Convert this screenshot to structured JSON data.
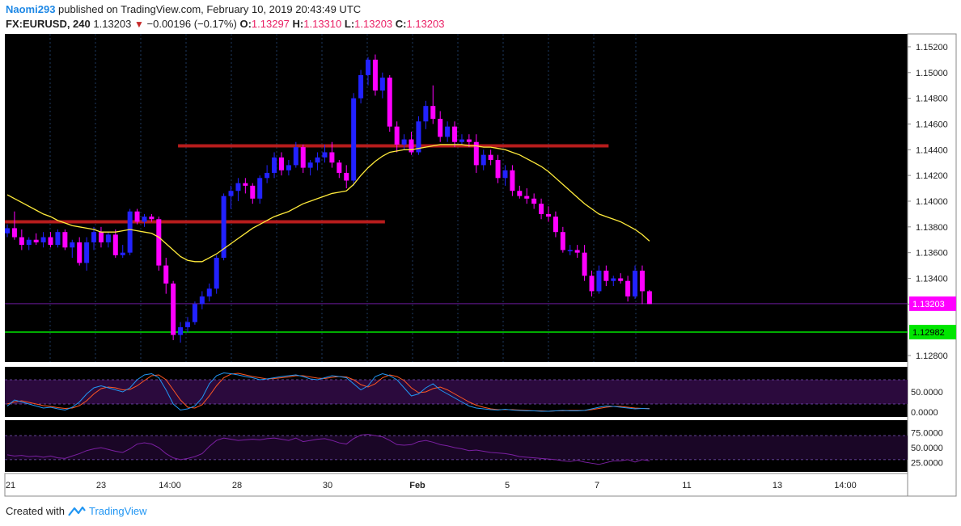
{
  "header": {
    "author": "Naomi293",
    "published_text": "published on TradingView.com, February 10, 2019 20:43:49 UTC",
    "symbol": "FX:EURUSD, 240",
    "last": "1.13203",
    "change": "−0.00196 (−0.17%)",
    "o_label": "O:",
    "o_value": "1.13297",
    "h_label": "H:",
    "h_value": "1.13310",
    "l_label": "L:",
    "l_value": "1.13203",
    "c_label": "C:",
    "c_value": "1.13203"
  },
  "footer": {
    "created_with": "Created with",
    "brand": "TradingView"
  },
  "colors": {
    "bg": "#000000",
    "up_candle": "#2222ff",
    "down_candle": "#ff00ff",
    "ma_line": "#ffeb3b",
    "resistance_line": "#b71c1c",
    "support_line": "#00e600",
    "last_price_label": "#ff00ff",
    "support_label": "#00e600",
    "stoch_k": "#2196f3",
    "stoch_d": "#ff5722",
    "rsi_line": "#7b1fa2",
    "osc_band": "#2b0a3d"
  },
  "chart_data": {
    "type": "candlestick",
    "symbol": "FX:EURUSD",
    "interval": "240",
    "x_ticks": [
      "21",
      "23",
      "14:00",
      "28",
      "30",
      "Feb",
      "5",
      "7",
      "11",
      "13",
      "14:00"
    ],
    "y_ticks": [
      "1.15200",
      "1.15000",
      "1.14800",
      "1.14600",
      "1.14400",
      "1.14200",
      "1.14000",
      "1.13800",
      "1.13600",
      "1.13400",
      "1.13200",
      "1.12800"
    ],
    "ylim": [
      1.1275,
      1.153
    ],
    "last_price_label": "1.13203",
    "support_label": "1.12982",
    "support_level": 1.12982,
    "resistance_levels": [
      {
        "price": 1.1384,
        "from_index": 0,
        "to_index": 52
      },
      {
        "price": 1.1443,
        "from_index": 24,
        "to_index": 83
      }
    ],
    "candles": [
      {
        "o": 1.1375,
        "h": 1.1382,
        "l": 1.1372,
        "c": 1.1379
      },
      {
        "o": 1.1379,
        "h": 1.1392,
        "l": 1.137,
        "c": 1.1372
      },
      {
        "o": 1.1372,
        "h": 1.1378,
        "l": 1.1362,
        "c": 1.1366
      },
      {
        "o": 1.1366,
        "h": 1.1372,
        "l": 1.1362,
        "c": 1.137
      },
      {
        "o": 1.137,
        "h": 1.1375,
        "l": 1.1366,
        "c": 1.1368
      },
      {
        "o": 1.1368,
        "h": 1.1376,
        "l": 1.1364,
        "c": 1.1372
      },
      {
        "o": 1.1372,
        "h": 1.1376,
        "l": 1.1364,
        "c": 1.1366
      },
      {
        "o": 1.1366,
        "h": 1.1378,
        "l": 1.1364,
        "c": 1.1376
      },
      {
        "o": 1.1376,
        "h": 1.1378,
        "l": 1.1362,
        "c": 1.1364
      },
      {
        "o": 1.1364,
        "h": 1.137,
        "l": 1.1356,
        "c": 1.1368
      },
      {
        "o": 1.1368,
        "h": 1.1372,
        "l": 1.135,
        "c": 1.1352
      },
      {
        "o": 1.1352,
        "h": 1.1372,
        "l": 1.1346,
        "c": 1.1368
      },
      {
        "o": 1.1368,
        "h": 1.138,
        "l": 1.1362,
        "c": 1.1376
      },
      {
        "o": 1.1376,
        "h": 1.138,
        "l": 1.1364,
        "c": 1.1368
      },
      {
        "o": 1.1368,
        "h": 1.1376,
        "l": 1.1364,
        "c": 1.1374
      },
      {
        "o": 1.1374,
        "h": 1.1378,
        "l": 1.1356,
        "c": 1.1358
      },
      {
        "o": 1.1358,
        "h": 1.1366,
        "l": 1.1356,
        "c": 1.136
      },
      {
        "o": 1.136,
        "h": 1.1394,
        "l": 1.1358,
        "c": 1.1392
      },
      {
        "o": 1.1392,
        "h": 1.1394,
        "l": 1.1382,
        "c": 1.1384
      },
      {
        "o": 1.1384,
        "h": 1.139,
        "l": 1.138,
        "c": 1.1388
      },
      {
        "o": 1.1388,
        "h": 1.139,
        "l": 1.1384,
        "c": 1.1386
      },
      {
        "o": 1.1386,
        "h": 1.1388,
        "l": 1.1346,
        "c": 1.135
      },
      {
        "o": 1.135,
        "h": 1.1356,
        "l": 1.1328,
        "c": 1.1336
      },
      {
        "o": 1.1336,
        "h": 1.1338,
        "l": 1.1292,
        "c": 1.1296
      },
      {
        "o": 1.1296,
        "h": 1.1306,
        "l": 1.129,
        "c": 1.1302
      },
      {
        "o": 1.1302,
        "h": 1.131,
        "l": 1.1298,
        "c": 1.1306
      },
      {
        "o": 1.1306,
        "h": 1.1322,
        "l": 1.1304,
        "c": 1.132
      },
      {
        "o": 1.132,
        "h": 1.133,
        "l": 1.1316,
        "c": 1.1326
      },
      {
        "o": 1.1326,
        "h": 1.1336,
        "l": 1.1322,
        "c": 1.1332
      },
      {
        "o": 1.1332,
        "h": 1.1358,
        "l": 1.1328,
        "c": 1.1356
      },
      {
        "o": 1.1356,
        "h": 1.1406,
        "l": 1.1354,
        "c": 1.1404
      },
      {
        "o": 1.1404,
        "h": 1.1412,
        "l": 1.1394,
        "c": 1.1408
      },
      {
        "o": 1.1408,
        "h": 1.1418,
        "l": 1.14,
        "c": 1.1414
      },
      {
        "o": 1.1414,
        "h": 1.1418,
        "l": 1.1406,
        "c": 1.1412
      },
      {
        "o": 1.1412,
        "h": 1.1414,
        "l": 1.1398,
        "c": 1.1402
      },
      {
        "o": 1.1402,
        "h": 1.142,
        "l": 1.1398,
        "c": 1.1418
      },
      {
        "o": 1.1418,
        "h": 1.1428,
        "l": 1.1414,
        "c": 1.1422
      },
      {
        "o": 1.1422,
        "h": 1.1438,
        "l": 1.1418,
        "c": 1.1434
      },
      {
        "o": 1.1434,
        "h": 1.1438,
        "l": 1.142,
        "c": 1.1424
      },
      {
        "o": 1.1424,
        "h": 1.1432,
        "l": 1.142,
        "c": 1.1428
      },
      {
        "o": 1.1428,
        "h": 1.1446,
        "l": 1.1426,
        "c": 1.1442
      },
      {
        "o": 1.1442,
        "h": 1.1444,
        "l": 1.1422,
        "c": 1.1426
      },
      {
        "o": 1.1426,
        "h": 1.1432,
        "l": 1.142,
        "c": 1.143
      },
      {
        "o": 1.143,
        "h": 1.1438,
        "l": 1.1424,
        "c": 1.1434
      },
      {
        "o": 1.1434,
        "h": 1.1444,
        "l": 1.143,
        "c": 1.1438
      },
      {
        "o": 1.1438,
        "h": 1.1446,
        "l": 1.1426,
        "c": 1.143
      },
      {
        "o": 1.143,
        "h": 1.1432,
        "l": 1.1418,
        "c": 1.1422
      },
      {
        "o": 1.1422,
        "h": 1.1428,
        "l": 1.141,
        "c": 1.1416
      },
      {
        "o": 1.1416,
        "h": 1.1484,
        "l": 1.1412,
        "c": 1.148
      },
      {
        "o": 1.148,
        "h": 1.1502,
        "l": 1.1476,
        "c": 1.1498
      },
      {
        "o": 1.1498,
        "h": 1.1512,
        "l": 1.149,
        "c": 1.151
      },
      {
        "o": 1.151,
        "h": 1.1514,
        "l": 1.1482,
        "c": 1.1486
      },
      {
        "o": 1.1486,
        "h": 1.15,
        "l": 1.148,
        "c": 1.1496
      },
      {
        "o": 1.1496,
        "h": 1.1498,
        "l": 1.1454,
        "c": 1.1458
      },
      {
        "o": 1.1458,
        "h": 1.1462,
        "l": 1.1438,
        "c": 1.1444
      },
      {
        "o": 1.1444,
        "h": 1.1452,
        "l": 1.144,
        "c": 1.1448
      },
      {
        "o": 1.1448,
        "h": 1.1454,
        "l": 1.1436,
        "c": 1.1438
      },
      {
        "o": 1.1438,
        "h": 1.1466,
        "l": 1.1436,
        "c": 1.1462
      },
      {
        "o": 1.1462,
        "h": 1.1478,
        "l": 1.1456,
        "c": 1.1474
      },
      {
        "o": 1.1474,
        "h": 1.149,
        "l": 1.146,
        "c": 1.1464
      },
      {
        "o": 1.1464,
        "h": 1.147,
        "l": 1.1446,
        "c": 1.145
      },
      {
        "o": 1.145,
        "h": 1.1462,
        "l": 1.1446,
        "c": 1.1458
      },
      {
        "o": 1.1458,
        "h": 1.1462,
        "l": 1.1442,
        "c": 1.1446
      },
      {
        "o": 1.1446,
        "h": 1.1452,
        "l": 1.1444,
        "c": 1.1448
      },
      {
        "o": 1.1448,
        "h": 1.1452,
        "l": 1.1442,
        "c": 1.1446
      },
      {
        "o": 1.1446,
        "h": 1.1452,
        "l": 1.1422,
        "c": 1.1428
      },
      {
        "o": 1.1428,
        "h": 1.144,
        "l": 1.1424,
        "c": 1.1436
      },
      {
        "o": 1.1436,
        "h": 1.144,
        "l": 1.1428,
        "c": 1.1432
      },
      {
        "o": 1.1432,
        "h": 1.1436,
        "l": 1.1414,
        "c": 1.1418
      },
      {
        "o": 1.1418,
        "h": 1.1428,
        "l": 1.1412,
        "c": 1.1424
      },
      {
        "o": 1.1424,
        "h": 1.1428,
        "l": 1.1404,
        "c": 1.1408
      },
      {
        "o": 1.1408,
        "h": 1.1412,
        "l": 1.1402,
        "c": 1.1404
      },
      {
        "o": 1.1404,
        "h": 1.141,
        "l": 1.1398,
        "c": 1.1402
      },
      {
        "o": 1.1402,
        "h": 1.1406,
        "l": 1.1394,
        "c": 1.1398
      },
      {
        "o": 1.1398,
        "h": 1.1402,
        "l": 1.1386,
        "c": 1.139
      },
      {
        "o": 1.139,
        "h": 1.1396,
        "l": 1.1384,
        "c": 1.1388
      },
      {
        "o": 1.1388,
        "h": 1.1392,
        "l": 1.1372,
        "c": 1.1376
      },
      {
        "o": 1.1376,
        "h": 1.138,
        "l": 1.136,
        "c": 1.1362
      },
      {
        "o": 1.1362,
        "h": 1.1366,
        "l": 1.1358,
        "c": 1.1362
      },
      {
        "o": 1.1362,
        "h": 1.1366,
        "l": 1.1356,
        "c": 1.136
      },
      {
        "o": 1.136,
        "h": 1.1366,
        "l": 1.1338,
        "c": 1.1342
      },
      {
        "o": 1.1342,
        "h": 1.1346,
        "l": 1.1326,
        "c": 1.133
      },
      {
        "o": 1.133,
        "h": 1.135,
        "l": 1.1328,
        "c": 1.1346
      },
      {
        "o": 1.1346,
        "h": 1.135,
        "l": 1.1334,
        "c": 1.1338
      },
      {
        "o": 1.1338,
        "h": 1.1342,
        "l": 1.1334,
        "c": 1.134
      },
      {
        "o": 1.134,
        "h": 1.1344,
        "l": 1.1336,
        "c": 1.1338
      },
      {
        "o": 1.1338,
        "h": 1.1342,
        "l": 1.1322,
        "c": 1.1326
      },
      {
        "o": 1.1326,
        "h": 1.135,
        "l": 1.1324,
        "c": 1.1346
      },
      {
        "o": 1.1346,
        "h": 1.135,
        "l": 1.132,
        "c": 1.133
      },
      {
        "o": 1.133,
        "h": 1.1331,
        "l": 1.132,
        "c": 1.132
      }
    ],
    "ma": [
      1.1405,
      1.1402,
      1.1399,
      1.1396,
      1.1393,
      1.139,
      1.1388,
      1.1385,
      1.1383,
      1.1381,
      1.138,
      1.1379,
      1.1378,
      1.1376,
      1.1376,
      1.1376,
      1.1377,
      1.1378,
      1.1377,
      1.1376,
      1.1375,
      1.1372,
      1.1367,
      1.1362,
      1.1357,
      1.1354,
      1.1353,
      1.1353,
      1.1356,
      1.1359,
      1.1363,
      1.1367,
      1.1371,
      1.1375,
      1.1379,
      1.1382,
      1.1385,
      1.1388,
      1.139,
      1.1392,
      1.1395,
      1.1398,
      1.14,
      1.1402,
      1.1404,
      1.1406,
      1.1407,
      1.1408,
      1.1413,
      1.142,
      1.1426,
      1.1431,
      1.1435,
      1.1438,
      1.1439,
      1.144,
      1.144,
      1.1441,
      1.1442,
      1.1443,
      1.1444,
      1.1444,
      1.1444,
      1.1444,
      1.1443,
      1.1443,
      1.1442,
      1.1442,
      1.1441,
      1.144,
      1.1438,
      1.1436,
      1.1433,
      1.143,
      1.1427,
      1.1423,
      1.1418,
      1.1413,
      1.1408,
      1.1403,
      1.1398,
      1.1394,
      1.139,
      1.1388,
      1.1386,
      1.1384,
      1.1381,
      1.1378,
      1.1374,
      1.1369
    ],
    "stoch": {
      "ticks": [
        "50.0000",
        "0.0000"
      ],
      "k": [
        15,
        30,
        25,
        20,
        15,
        10,
        12,
        8,
        5,
        12,
        25,
        45,
        60,
        65,
        60,
        55,
        50,
        60,
        80,
        92,
        95,
        85,
        55,
        20,
        5,
        8,
        15,
        35,
        70,
        90,
        97,
        95,
        92,
        88,
        85,
        80,
        82,
        85,
        88,
        90,
        92,
        88,
        82,
        80,
        85,
        90,
        88,
        85,
        70,
        55,
        65,
        88,
        95,
        90,
        80,
        60,
        40,
        45,
        60,
        70,
        55,
        45,
        35,
        25,
        15,
        10,
        8,
        6,
        5,
        7,
        5,
        4,
        3,
        3,
        2,
        2,
        3,
        4,
        3,
        3,
        4,
        8,
        12,
        15,
        14,
        12,
        10,
        8,
        9,
        8
      ],
      "d": [
        20,
        25,
        28,
        24,
        20,
        16,
        14,
        11,
        9,
        10,
        16,
        28,
        45,
        58,
        62,
        60,
        55,
        56,
        65,
        78,
        90,
        92,
        80,
        55,
        30,
        12,
        10,
        18,
        40,
        65,
        85,
        94,
        96,
        92,
        88,
        85,
        82,
        83,
        85,
        87,
        90,
        90,
        87,
        84,
        83,
        86,
        88,
        87,
        80,
        68,
        62,
        70,
        85,
        92,
        88,
        78,
        60,
        48,
        50,
        58,
        62,
        55,
        45,
        35,
        25,
        17,
        12,
        8,
        6,
        6,
        6,
        5,
        4,
        3,
        3,
        2,
        3,
        3,
        4,
        4,
        4,
        6,
        9,
        12,
        14,
        14,
        12,
        10,
        9,
        9
      ]
    },
    "rsi": {
      "ticks": [
        "75.0000",
        "50.0000",
        "25.0000"
      ],
      "values": [
        38,
        36,
        37,
        35,
        36,
        34,
        36,
        33,
        32,
        36,
        40,
        45,
        48,
        50,
        47,
        44,
        42,
        48,
        56,
        58,
        56,
        50,
        40,
        33,
        30,
        32,
        35,
        40,
        52,
        62,
        66,
        64,
        62,
        63,
        64,
        63,
        65,
        66,
        64,
        62,
        66,
        60,
        62,
        64,
        65,
        62,
        58,
        56,
        65,
        71,
        72,
        70,
        68,
        62,
        55,
        54,
        55,
        60,
        62,
        59,
        55,
        53,
        50,
        48,
        45,
        46,
        44,
        42,
        41,
        40,
        38,
        35,
        34,
        33,
        32,
        31,
        30,
        28,
        27,
        29,
        26,
        24,
        22,
        25,
        28,
        28,
        30,
        26,
        30,
        28
      ]
    }
  }
}
